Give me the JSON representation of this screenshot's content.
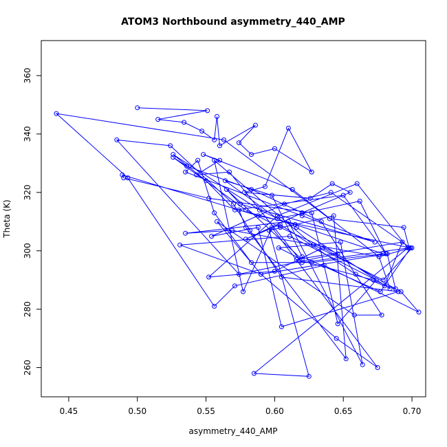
{
  "chart_data": {
    "type": "line",
    "title": "ATOM3 Northbound asymmetry_440_AMP",
    "xlabel": "asymmetry_440_AMP",
    "ylabel": "Theta (K)",
    "xlim": [
      0.43,
      0.71
    ],
    "ylim": [
      250,
      372
    ],
    "xticks": [
      0.45,
      0.5,
      0.55,
      0.6,
      0.65,
      0.7
    ],
    "xtick_labels": [
      "0.45",
      "0.50",
      "0.55",
      "0.60",
      "0.65",
      "0.70"
    ],
    "yticks": [
      260,
      280,
      300,
      320,
      340,
      360
    ],
    "ytick_labels": [
      "260",
      "280",
      "300",
      "320",
      "340",
      "360"
    ],
    "grid": false,
    "line_color": "#0000ff",
    "series": [
      {
        "x": [
          0.5,
          0.551,
          0.515,
          0.534,
          0.547,
          0.556,
          0.558,
          0.56,
          0.586,
          0.574,
          0.583,
          0.6,
          0.627,
          0.61,
          0.593,
          0.578,
          0.626,
          0.642,
          0.655,
          0.62,
          0.579,
          0.604,
          0.659,
          0.68,
          0.693,
          0.616,
          0.672,
          0.692,
          0.705,
          0.636,
          0.571,
          0.556,
          0.493,
          0.441,
          0.563,
          0.64,
          0.694,
          0.698,
          0.62,
          0.567,
          0.543,
          0.56,
          0.548,
          0.613,
          0.676,
          0.684,
          0.616,
          0.589,
          0.526,
          0.55,
          0.571,
          0.65,
          0.681,
          0.662,
          0.602,
          0.564,
          0.598,
          0.62,
          0.677,
          0.699,
          0.588,
          0.489,
          0.49,
          0.552,
          0.627,
          0.646,
          0.674,
          0.611,
          0.531,
          0.59,
          0.682,
          0.688,
          0.635,
          0.6,
          0.552,
          0.602,
          0.66,
          0.697,
          0.585,
          0.625,
          0.596,
          0.643,
          0.652,
          0.579,
          0.574,
          0.615,
          0.679,
          0.627,
          0.583,
          0.556,
          0.544,
          0.535,
          0.62,
          0.673,
          0.575,
          0.565,
          0.62,
          0.603,
          0.648,
          0.664,
          0.61,
          0.535,
          0.569,
          0.676,
          0.699,
          0.641,
          0.607,
          0.554,
          0.588,
          0.605,
          0.69,
          0.605,
          0.582,
          0.57,
          0.524,
          0.485,
          0.574,
          0.646,
          0.604,
          0.579,
          0.526,
          0.536,
          0.583,
          0.634,
          0.678,
          0.658,
          0.558,
          0.59,
          0.645,
          0.675,
          0.598,
          0.577,
          0.556,
          0.628,
          0.679,
          0.7
        ],
        "y": [
          349,
          348,
          345,
          344,
          341,
          338,
          346,
          336,
          343,
          337,
          333,
          335,
          327,
          342,
          322,
          320,
          318,
          323,
          320,
          313,
          304,
          309,
          292,
          288,
          303,
          297,
          290,
          286,
          279,
          295,
          288,
          281,
          325,
          347,
          338,
          311,
          308,
          301,
          296,
          327,
          326,
          331,
          333,
          321,
          298,
          287,
          308,
          314,
          333,
          324,
          314,
          319,
          299,
          317,
          311,
          324,
          319,
          298,
          286,
          301,
          312,
          326,
          325,
          318,
          313,
          275,
          290,
          305,
          302,
          292,
          299,
          287,
          301,
          293,
          291,
          312,
          323,
          301,
          258,
          257,
          307,
          312,
          263,
          308,
          314,
          309,
          299,
          296,
          296,
          313,
          331,
          327,
          312,
          303,
          316,
          321,
          297,
          301,
          303,
          261,
          310,
          306,
          307,
          298,
          301,
          320,
          316,
          305,
          308,
          274,
          286,
          291,
          307,
          316,
          336,
          338,
          292,
          299,
          308,
          314,
          332,
          329,
          321,
          310,
          278,
          278,
          310,
          292,
          270,
          260,
          308,
          286,
          331,
          302,
          290,
          301
        ]
      }
    ]
  }
}
